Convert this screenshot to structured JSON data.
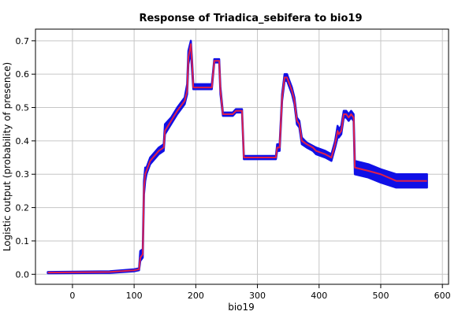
{
  "chart_data": {
    "type": "line",
    "title": "Response of Triadica_sebifera to bio19",
    "xlabel": "bio19",
    "ylabel": "Logistic output (probability of presence)",
    "xlim": [
      -60,
      610
    ],
    "ylim": [
      -0.03,
      0.735
    ],
    "x_ticks": [
      0,
      100,
      200,
      300,
      400,
      500,
      600
    ],
    "y_ticks": [
      0.0,
      0.1,
      0.2,
      0.3,
      0.4,
      0.5,
      0.6,
      0.7
    ],
    "y_tick_labels": [
      "0.0",
      "0.1",
      "0.2",
      "0.3",
      "0.4",
      "0.5",
      "0.6",
      "0.7"
    ],
    "grid": true,
    "legend": "none",
    "series": [
      {
        "role": "mean",
        "color": "#e0204a",
        "points": [
          [
            -40,
            0.005
          ],
          [
            60,
            0.007
          ],
          [
            100,
            0.012
          ],
          [
            108,
            0.015
          ],
          [
            110,
            0.05
          ],
          [
            114,
            0.06
          ],
          [
            116,
            0.26
          ],
          [
            118,
            0.3
          ],
          [
            120,
            0.31
          ],
          [
            126,
            0.34
          ],
          [
            140,
            0.37
          ],
          [
            148,
            0.38
          ],
          [
            150,
            0.43
          ],
          [
            160,
            0.46
          ],
          [
            170,
            0.49
          ],
          [
            182,
            0.52
          ],
          [
            186,
            0.55
          ],
          [
            188,
            0.65
          ],
          [
            192,
            0.69
          ],
          [
            194,
            0.63
          ],
          [
            196,
            0.56
          ],
          [
            220,
            0.56
          ],
          [
            226,
            0.56
          ],
          [
            230,
            0.64
          ],
          [
            238,
            0.64
          ],
          [
            240,
            0.55
          ],
          [
            244,
            0.48
          ],
          [
            260,
            0.48
          ],
          [
            265,
            0.49
          ],
          [
            275,
            0.49
          ],
          [
            278,
            0.35
          ],
          [
            330,
            0.35
          ],
          [
            332,
            0.38
          ],
          [
            336,
            0.38
          ],
          [
            340,
            0.53
          ],
          [
            344,
            0.59
          ],
          [
            348,
            0.59
          ],
          [
            352,
            0.57
          ],
          [
            356,
            0.55
          ],
          [
            360,
            0.52
          ],
          [
            364,
            0.46
          ],
          [
            368,
            0.45
          ],
          [
            372,
            0.4
          ],
          [
            380,
            0.39
          ],
          [
            390,
            0.38
          ],
          [
            395,
            0.37
          ],
          [
            410,
            0.36
          ],
          [
            420,
            0.35
          ],
          [
            426,
            0.39
          ],
          [
            430,
            0.43
          ],
          [
            432,
            0.42
          ],
          [
            436,
            0.43
          ],
          [
            440,
            0.48
          ],
          [
            444,
            0.48
          ],
          [
            448,
            0.47
          ],
          [
            452,
            0.48
          ],
          [
            456,
            0.47
          ],
          [
            458,
            0.32
          ],
          [
            480,
            0.31
          ],
          [
            500,
            0.3
          ],
          [
            525,
            0.28
          ],
          [
            575,
            0.28
          ]
        ]
      },
      {
        "role": "band",
        "color": "#1010e6",
        "lower": [
          [
            -40,
            0.003
          ],
          [
            60,
            0.004
          ],
          [
            100,
            0.009
          ],
          [
            108,
            0.012
          ],
          [
            110,
            0.04
          ],
          [
            114,
            0.05
          ],
          [
            116,
            0.24
          ],
          [
            118,
            0.28
          ],
          [
            120,
            0.3
          ],
          [
            126,
            0.33
          ],
          [
            140,
            0.36
          ],
          [
            148,
            0.37
          ],
          [
            150,
            0.42
          ],
          [
            160,
            0.45
          ],
          [
            170,
            0.48
          ],
          [
            182,
            0.51
          ],
          [
            186,
            0.54
          ],
          [
            188,
            0.63
          ],
          [
            192,
            0.67
          ],
          [
            194,
            0.61
          ],
          [
            196,
            0.555
          ],
          [
            220,
            0.555
          ],
          [
            226,
            0.555
          ],
          [
            230,
            0.635
          ],
          [
            238,
            0.635
          ],
          [
            240,
            0.54
          ],
          [
            244,
            0.475
          ],
          [
            260,
            0.475
          ],
          [
            265,
            0.485
          ],
          [
            275,
            0.485
          ],
          [
            278,
            0.345
          ],
          [
            330,
            0.345
          ],
          [
            332,
            0.37
          ],
          [
            336,
            0.37
          ],
          [
            340,
            0.52
          ],
          [
            344,
            0.58
          ],
          [
            348,
            0.58
          ],
          [
            352,
            0.56
          ],
          [
            356,
            0.54
          ],
          [
            360,
            0.51
          ],
          [
            364,
            0.45
          ],
          [
            368,
            0.44
          ],
          [
            372,
            0.39
          ],
          [
            380,
            0.38
          ],
          [
            390,
            0.37
          ],
          [
            395,
            0.36
          ],
          [
            410,
            0.35
          ],
          [
            420,
            0.34
          ],
          [
            426,
            0.38
          ],
          [
            430,
            0.41
          ],
          [
            432,
            0.41
          ],
          [
            436,
            0.42
          ],
          [
            440,
            0.47
          ],
          [
            444,
            0.47
          ],
          [
            448,
            0.46
          ],
          [
            452,
            0.47
          ],
          [
            456,
            0.46
          ],
          [
            458,
            0.3
          ],
          [
            480,
            0.29
          ],
          [
            500,
            0.275
          ],
          [
            525,
            0.26
          ],
          [
            575,
            0.26
          ]
        ],
        "upper": [
          [
            -40,
            0.007
          ],
          [
            60,
            0.009
          ],
          [
            100,
            0.015
          ],
          [
            108,
            0.018
          ],
          [
            110,
            0.07
          ],
          [
            114,
            0.075
          ],
          [
            116,
            0.28
          ],
          [
            118,
            0.32
          ],
          [
            120,
            0.32
          ],
          [
            126,
            0.35
          ],
          [
            140,
            0.38
          ],
          [
            148,
            0.39
          ],
          [
            150,
            0.45
          ],
          [
            160,
            0.47
          ],
          [
            170,
            0.5
          ],
          [
            182,
            0.53
          ],
          [
            186,
            0.57
          ],
          [
            188,
            0.67
          ],
          [
            192,
            0.7
          ],
          [
            194,
            0.64
          ],
          [
            196,
            0.57
          ],
          [
            220,
            0.57
          ],
          [
            226,
            0.57
          ],
          [
            230,
            0.645
          ],
          [
            238,
            0.645
          ],
          [
            240,
            0.56
          ],
          [
            244,
            0.485
          ],
          [
            260,
            0.485
          ],
          [
            265,
            0.495
          ],
          [
            275,
            0.495
          ],
          [
            278,
            0.355
          ],
          [
            330,
            0.355
          ],
          [
            332,
            0.39
          ],
          [
            336,
            0.39
          ],
          [
            340,
            0.54
          ],
          [
            344,
            0.6
          ],
          [
            348,
            0.6
          ],
          [
            352,
            0.58
          ],
          [
            356,
            0.56
          ],
          [
            360,
            0.53
          ],
          [
            364,
            0.47
          ],
          [
            368,
            0.46
          ],
          [
            372,
            0.41
          ],
          [
            380,
            0.395
          ],
          [
            390,
            0.385
          ],
          [
            395,
            0.38
          ],
          [
            410,
            0.37
          ],
          [
            420,
            0.36
          ],
          [
            426,
            0.4
          ],
          [
            430,
            0.445
          ],
          [
            432,
            0.435
          ],
          [
            436,
            0.445
          ],
          [
            440,
            0.49
          ],
          [
            444,
            0.49
          ],
          [
            448,
            0.48
          ],
          [
            452,
            0.49
          ],
          [
            456,
            0.48
          ],
          [
            458,
            0.34
          ],
          [
            480,
            0.33
          ],
          [
            500,
            0.315
          ],
          [
            525,
            0.3
          ],
          [
            575,
            0.3
          ]
        ]
      }
    ]
  }
}
